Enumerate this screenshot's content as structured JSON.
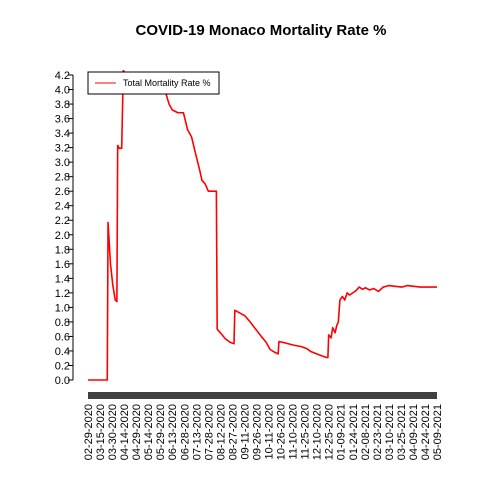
{
  "chart_data": {
    "type": "line",
    "title": "COVID-19 Monaco Mortality Rate %",
    "xlabel": "",
    "ylabel": "",
    "ylim": [
      0,
      4.2
    ],
    "yticks": [
      0.0,
      0.2,
      0.4,
      0.6,
      0.8,
      1.0,
      1.2,
      1.4,
      1.6,
      1.8,
      2.0,
      2.2,
      2.4,
      2.6,
      2.8,
      3.0,
      3.2,
      3.4,
      3.6,
      3.8,
      4.0,
      4.2
    ],
    "ytick_labels": [
      "0.0",
      "0.2",
      "0.4",
      "0.6",
      "0.8",
      "1.0",
      "1.2",
      "1.4",
      "1.6",
      "1.8",
      "2.0",
      "2.2",
      "2.4",
      "2.6",
      "2.8",
      "3.0",
      "3.2",
      "3.4",
      "3.6",
      "3.8",
      "4.0",
      "4.2"
    ],
    "xlim": [
      "2020-02-29",
      "2021-05-09"
    ],
    "xtick_labels": [
      "02-29-2020",
      "03-15-2020",
      "03-30-2020",
      "04-14-2020",
      "04-29-2020",
      "05-14-2020",
      "05-29-2020",
      "06-13-2020",
      "06-28-2020",
      "07-13-2020",
      "07-28-2020",
      "08-12-2020",
      "08-27-2020",
      "09-11-2020",
      "09-26-2020",
      "10-11-2020",
      "10-26-2020",
      "11-10-2020",
      "11-25-2020",
      "12-10-2020",
      "12-25-2020",
      "01-09-2021",
      "01-24-2021",
      "02-08-2021",
      "02-23-2021",
      "03-10-2021",
      "03-25-2021",
      "04-09-2021",
      "04-24-2021",
      "05-09-2021"
    ],
    "legend": {
      "placement": "top-left",
      "entries": [
        "Total Mortality Rate %"
      ]
    },
    "grid": false,
    "series": [
      {
        "name": "Total Mortality Rate %",
        "color": "#ff0000",
        "points": [
          [
            "2020-02-29",
            0.0
          ],
          [
            "2020-03-24",
            0.0
          ],
          [
            "2020-03-25",
            2.17
          ],
          [
            "2020-03-28",
            1.6
          ],
          [
            "2020-03-31",
            1.3
          ],
          [
            "2020-04-03",
            1.1
          ],
          [
            "2020-04-05",
            1.08
          ],
          [
            "2020-04-06",
            3.23
          ],
          [
            "2020-04-08",
            3.19
          ],
          [
            "2020-04-11",
            3.19
          ],
          [
            "2020-04-13",
            4.26
          ],
          [
            "2020-04-16",
            4.22
          ],
          [
            "2020-04-30",
            4.17
          ],
          [
            "2020-05-10",
            4.08
          ],
          [
            "2020-05-25",
            4.08
          ],
          [
            "2020-06-05",
            3.95
          ],
          [
            "2020-06-09",
            3.8
          ],
          [
            "2020-06-13",
            3.72
          ],
          [
            "2020-06-20",
            3.68
          ],
          [
            "2020-06-27",
            3.68
          ],
          [
            "2020-07-02",
            3.45
          ],
          [
            "2020-07-07",
            3.35
          ],
          [
            "2020-07-12",
            3.12
          ],
          [
            "2020-07-17",
            2.9
          ],
          [
            "2020-07-20",
            2.75
          ],
          [
            "2020-07-24",
            2.7
          ],
          [
            "2020-07-28",
            2.6
          ],
          [
            "2020-08-07",
            2.6
          ],
          [
            "2020-08-08",
            0.7
          ],
          [
            "2020-08-12",
            0.65
          ],
          [
            "2020-08-18",
            0.57
          ],
          [
            "2020-08-24",
            0.52
          ],
          [
            "2020-08-29",
            0.5
          ],
          [
            "2020-08-30",
            0.96
          ],
          [
            "2020-09-04",
            0.93
          ],
          [
            "2020-09-12",
            0.88
          ],
          [
            "2020-09-18",
            0.8
          ],
          [
            "2020-09-25",
            0.7
          ],
          [
            "2020-10-02",
            0.6
          ],
          [
            "2020-10-08",
            0.52
          ],
          [
            "2020-10-13",
            0.42
          ],
          [
            "2020-10-19",
            0.38
          ],
          [
            "2020-10-23",
            0.36
          ],
          [
            "2020-10-24",
            0.53
          ],
          [
            "2020-11-01",
            0.51
          ],
          [
            "2020-11-11",
            0.48
          ],
          [
            "2020-11-21",
            0.46
          ],
          [
            "2020-11-28",
            0.43
          ],
          [
            "2020-12-03",
            0.39
          ],
          [
            "2020-12-10",
            0.36
          ],
          [
            "2020-12-17",
            0.33
          ],
          [
            "2020-12-22",
            0.31
          ],
          [
            "2020-12-24",
            0.31
          ],
          [
            "2020-12-25",
            0.62
          ],
          [
            "2020-12-28",
            0.58
          ],
          [
            "2020-12-30",
            0.72
          ],
          [
            "2021-01-02",
            0.65
          ],
          [
            "2021-01-04",
            0.75
          ],
          [
            "2021-01-06",
            0.8
          ],
          [
            "2021-01-08",
            1.1
          ],
          [
            "2021-01-11",
            1.15
          ],
          [
            "2021-01-14",
            1.1
          ],
          [
            "2021-01-17",
            1.2
          ],
          [
            "2021-01-20",
            1.17
          ],
          [
            "2021-01-24",
            1.2
          ],
          [
            "2021-01-28",
            1.23
          ],
          [
            "2021-02-01",
            1.28
          ],
          [
            "2021-02-05",
            1.25
          ],
          [
            "2021-02-09",
            1.27
          ],
          [
            "2021-02-14",
            1.24
          ],
          [
            "2021-02-19",
            1.26
          ],
          [
            "2021-02-25",
            1.22
          ],
          [
            "2021-03-03",
            1.28
          ],
          [
            "2021-03-10",
            1.3
          ],
          [
            "2021-03-18",
            1.29
          ],
          [
            "2021-03-26",
            1.28
          ],
          [
            "2021-04-02",
            1.3
          ],
          [
            "2021-04-10",
            1.29
          ],
          [
            "2021-04-18",
            1.28
          ],
          [
            "2021-05-09",
            1.28
          ]
        ]
      }
    ]
  }
}
